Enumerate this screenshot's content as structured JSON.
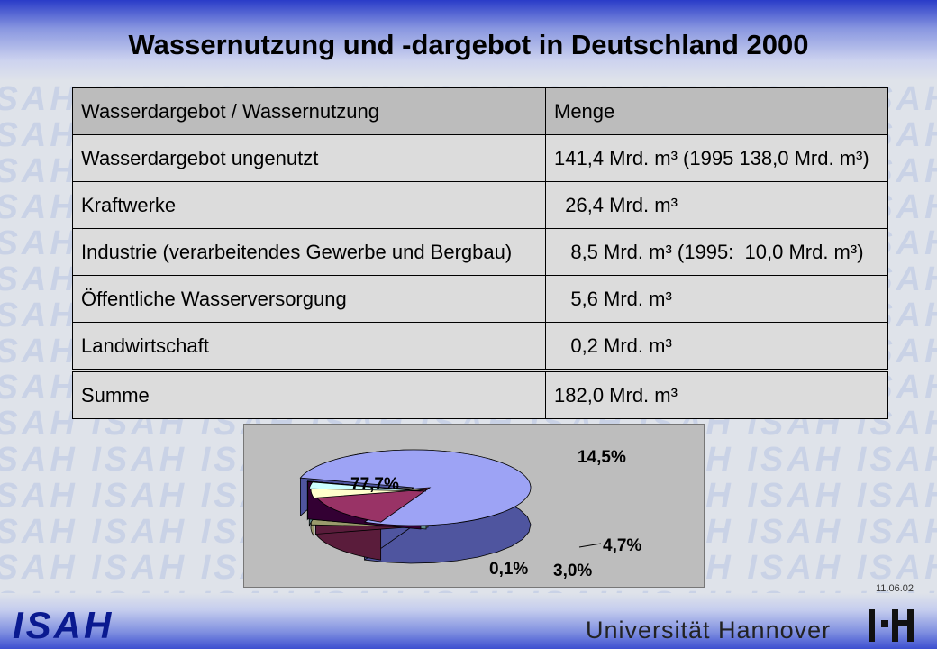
{
  "slide": {
    "title": "Wassernutzung und -dargebot in Deutschland 2000",
    "date": "11.06.02",
    "logo_left": "ISAH",
    "university": "Universität Hannover",
    "watermark_text": "ISAH"
  },
  "table": {
    "headers": [
      "Wasserdargebot / Wassernutzung",
      "Menge"
    ],
    "rows": [
      [
        "Wasserdargebot ungenutzt",
        "141,4 Mrd. m³ (1995 138,0 Mrd. m³)"
      ],
      [
        "Kraftwerke",
        "  26,4 Mrd. m³"
      ],
      [
        "Industrie (verarbeitendes Gewerbe und Bergbau)",
        "   8,5 Mrd. m³ (1995:  10,0 Mrd. m³)"
      ],
      [
        "Öffentliche Wasserversorgung",
        "   5,6 Mrd. m³"
      ],
      [
        "Landwirtschaft",
        "   0,2 Mrd. m³"
      ]
    ],
    "sum": [
      "Summe",
      "182,0 Mrd. m³"
    ]
  },
  "chart_data": {
    "type": "pie",
    "style": "3d-exploded",
    "slices": [
      {
        "label": "77,7%",
        "value": 77.7,
        "color": "#9da3f5",
        "side": "#4f559f"
      },
      {
        "label": "14,5%",
        "value": 14.5,
        "color": "#993366",
        "side": "#5a1c3b"
      },
      {
        "label": "4,7%",
        "value": 4.7,
        "color": "#ffffcc",
        "side": "#9a9a6c"
      },
      {
        "label": "3,0%",
        "value": 3.0,
        "color": "#ccffff",
        "side": "#5f8a8a"
      },
      {
        "label": "0,1%",
        "value": 0.1,
        "color": "#660066",
        "side": "#330033"
      }
    ]
  },
  "colors": {
    "title_band": "#2a3cc8",
    "logo": "#0a1a90",
    "table_header": "#bcbcbc",
    "table_body": "#dcdcdc"
  }
}
